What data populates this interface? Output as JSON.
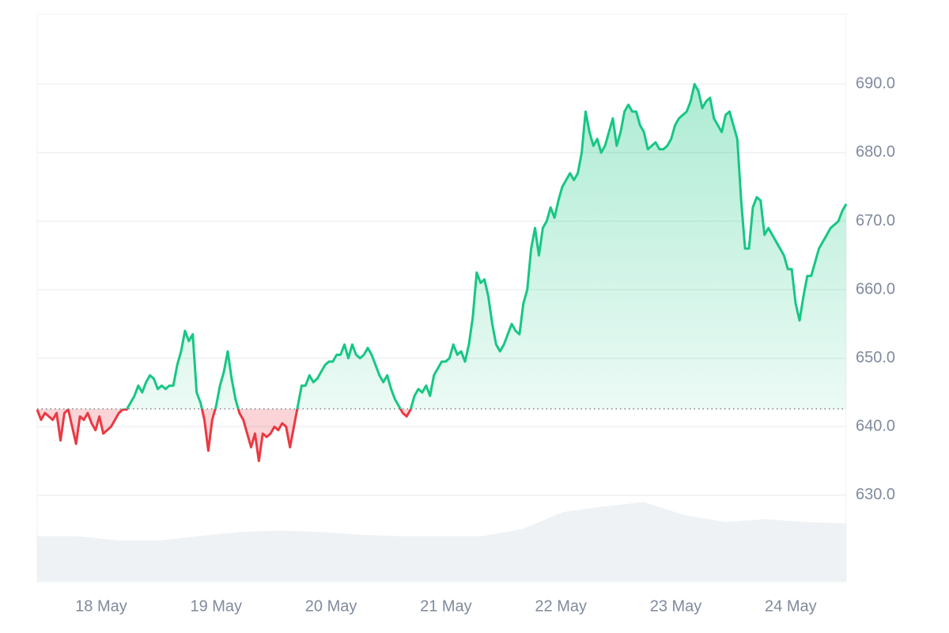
{
  "chart_data": {
    "type": "line",
    "xlim": [
      -0.557,
      6.483
    ],
    "xticks": [
      {
        "value": 0,
        "label": "18 May"
      },
      {
        "value": 1,
        "label": "19 May"
      },
      {
        "value": 2,
        "label": "20 May"
      },
      {
        "value": 3,
        "label": "21 May"
      },
      {
        "value": 4,
        "label": "22 May"
      },
      {
        "value": 5,
        "label": "23 May"
      },
      {
        "value": 6,
        "label": "24 May"
      }
    ],
    "ylim": [
      617.4,
      700.2
    ],
    "yticks": [
      {
        "value": 630,
        "label": "630.0"
      },
      {
        "value": 640,
        "label": "640.0"
      },
      {
        "value": 650,
        "label": "650.0"
      },
      {
        "value": 660,
        "label": "660.0"
      },
      {
        "value": 670,
        "label": "670.0"
      },
      {
        "value": 680,
        "label": "680.0"
      },
      {
        "value": 690,
        "label": "690.0"
      }
    ],
    "grid": true,
    "baseline": 642.6,
    "up_color": "#16c784",
    "down_color": "#ea3943",
    "series": [
      {
        "name": "price",
        "values": [
          642.5,
          641,
          642,
          641.5,
          641,
          642,
          638,
          642,
          642.5,
          640,
          637.5,
          641.5,
          641,
          642,
          640.5,
          639.5,
          641.5,
          639,
          639.5,
          640,
          641,
          642,
          642.5,
          642.5,
          643.5,
          644.5,
          646,
          645,
          646.5,
          647.5,
          647,
          645.5,
          646,
          645.5,
          646,
          646,
          649,
          651,
          654,
          652.5,
          653.5,
          645,
          643.5,
          641,
          636.5,
          641,
          643,
          646,
          648,
          651,
          647,
          644,
          642,
          641,
          639,
          637,
          639,
          635,
          639,
          638.5,
          639,
          640,
          639.5,
          640.5,
          640,
          637,
          640,
          643,
          646,
          646,
          647.5,
          646.5,
          647,
          648,
          649,
          649.5,
          649.5,
          650.5,
          650.5,
          652,
          650,
          652,
          650.5,
          650,
          650.5,
          651.5,
          650.5,
          649,
          647.5,
          646.5,
          647.5,
          645.5,
          644,
          643,
          642,
          641.5,
          642.5,
          644.5,
          645.5,
          645,
          646,
          644.5,
          647.5,
          648.5,
          649.5,
          649.5,
          650,
          652,
          650.5,
          651,
          649.5,
          652,
          656,
          662.5,
          661,
          661.5,
          659,
          655,
          652,
          651,
          652,
          653.5,
          655,
          654,
          653.5,
          658,
          660,
          666,
          669,
          665,
          669,
          670,
          672,
          670.5,
          673,
          675,
          676,
          677,
          676,
          677,
          680,
          686,
          683,
          681,
          682,
          680,
          681,
          683,
          685,
          681,
          683,
          686,
          687,
          686,
          686,
          684,
          683,
          680.5,
          681,
          681.5,
          680.5,
          680.5,
          681,
          682,
          684,
          685,
          685.5,
          686,
          687.5,
          690,
          689,
          686.5,
          687.5,
          688,
          685,
          684,
          683,
          685.5,
          686,
          684,
          682,
          673,
          666,
          666,
          672,
          673.5,
          673,
          668,
          669,
          668,
          667,
          666,
          665,
          663,
          663,
          658,
          655.5,
          659,
          662,
          662,
          664,
          666,
          667,
          668,
          669,
          669.5,
          670,
          671.5,
          672.5
        ]
      },
      {
        "name": "volume",
        "axis": "y2",
        "color": "#eff2f5",
        "values": [
          32,
          32,
          29,
          29,
          32,
          35,
          36,
          35,
          33,
          32,
          32,
          32,
          37,
          49,
          53,
          56,
          47,
          42,
          44,
          42,
          41
        ]
      }
    ],
    "y2lim": [
      0,
      400
    ]
  }
}
